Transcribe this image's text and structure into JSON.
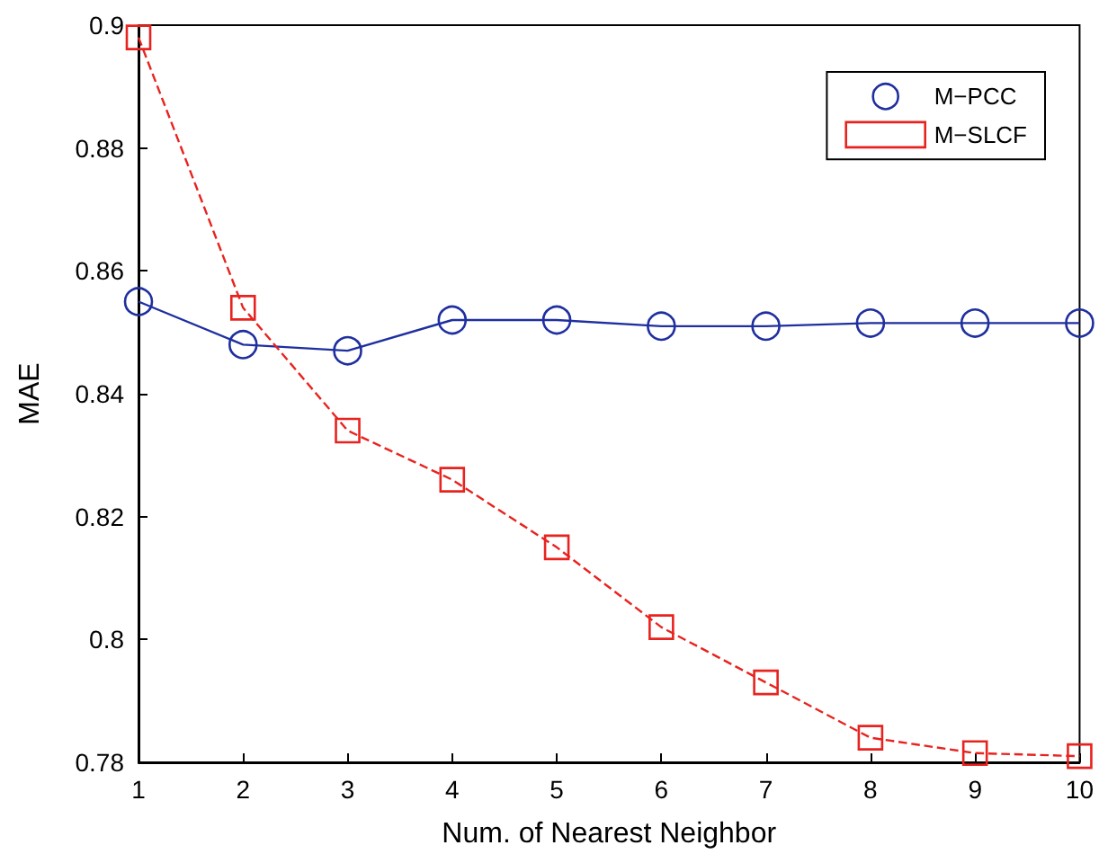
{
  "chart_data": {
    "type": "line",
    "xlabel": "Num. of Nearest Neighbor",
    "ylabel": "MAE",
    "x": [
      1,
      2,
      3,
      4,
      5,
      6,
      7,
      8,
      9,
      10
    ],
    "series": [
      {
        "name": "M−PCC",
        "color": "#1f2f9f",
        "marker": "circle",
        "line_style": "solid",
        "values": [
          0.855,
          0.848,
          0.847,
          0.852,
          0.852,
          0.851,
          0.851,
          0.8515,
          0.8515,
          0.8515
        ]
      },
      {
        "name": "M−SLCF",
        "color": "#e8231f",
        "marker": "square",
        "line_style": "dashed",
        "values": [
          0.898,
          0.854,
          0.834,
          0.826,
          0.815,
          0.802,
          0.793,
          0.784,
          0.7815,
          0.781
        ]
      }
    ],
    "xlim": [
      1,
      10
    ],
    "xticks": [
      1,
      2,
      3,
      4,
      5,
      6,
      7,
      8,
      9,
      10
    ],
    "ylim": [
      0.78,
      0.9
    ],
    "yticks": [
      0.78,
      0.8,
      0.82,
      0.84,
      0.86,
      0.88,
      0.9
    ],
    "grid": false,
    "legend": "top right"
  }
}
